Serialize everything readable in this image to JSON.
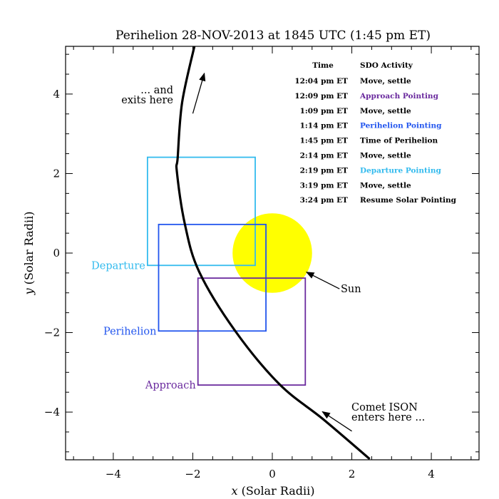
{
  "chart_data": {
    "type": "line",
    "title": "Perihelion 28-NOV-2013 at 1845 UTC (1:45 pm ET)",
    "xlabel_var": "x",
    "xlabel_rest": " (Solar Radii)",
    "ylabel_var": "y",
    "ylabel_rest": " (Solar Radii)",
    "xlim": [
      -5.2,
      5.2
    ],
    "ylim": [
      -5.2,
      5.2
    ],
    "xticks": [
      -4,
      -2,
      0,
      2,
      4
    ],
    "yticks": [
      -4,
      -2,
      0,
      2,
      4
    ],
    "xtick_labels": [
      "−4",
      "−2",
      "0",
      "2",
      "4"
    ],
    "ytick_labels": [
      "−4",
      "−2",
      "0",
      "2",
      "4"
    ],
    "minor_tick_step": 0.5,
    "grid": false,
    "comet_path": {
      "color": "#000000",
      "x": [
        2.45,
        1.28,
        0.18,
        -0.94,
        -1.84,
        -2.2,
        -2.4,
        -2.38,
        -2.27,
        -1.96
      ],
      "y": [
        -5.18,
        -4.18,
        -3.3,
        -1.95,
        -0.47,
        0.73,
        2.04,
        2.4,
        3.78,
        5.2
      ]
    },
    "sun": {
      "label": "Sun",
      "center": [
        0,
        0
      ],
      "radius": 1.0,
      "color": "#ffff00"
    },
    "pointing_boxes": [
      {
        "label": "Departure",
        "color": "#33bbee",
        "x": [
          -3.14,
          -0.43
        ],
        "y": [
          -0.31,
          2.41
        ]
      },
      {
        "label": "Perihelion",
        "color": "#2255ee",
        "x": [
          -2.86,
          -0.16
        ],
        "y": [
          -1.96,
          0.72
        ]
      },
      {
        "label": "Approach",
        "color": "#6a2a9e",
        "x": [
          -1.87,
          0.83
        ],
        "y": [
          -3.32,
          -0.63
        ]
      }
    ],
    "annotations": {
      "exits": [
        "... and",
        "exits here"
      ],
      "enters": [
        "Comet ISON",
        "enters here ..."
      ],
      "sun": "Sun"
    },
    "schedule": {
      "header_time": "Time",
      "header_activity": "SDO Activity",
      "rows": [
        {
          "time": "12:04 pm ET",
          "activity": "Move, settle",
          "color": "#000000"
        },
        {
          "time": "12:09 pm ET",
          "activity": "Approach Pointing",
          "color": "#6a2a9e"
        },
        {
          "time": "1:09 pm ET",
          "activity": "Move, settle",
          "color": "#000000"
        },
        {
          "time": "1:14 pm ET",
          "activity": "Perihelion Pointing",
          "color": "#2255ee"
        },
        {
          "time": "1:45 pm ET",
          "activity": "Time of Perihelion",
          "color": "#000000"
        },
        {
          "time": "2:14 pm ET",
          "activity": "Move, settle",
          "color": "#000000"
        },
        {
          "time": "2:19 pm ET",
          "activity": "Departure Pointing",
          "color": "#33bbee"
        },
        {
          "time": "3:19 pm ET",
          "activity": "Move, settle",
          "color": "#000000"
        },
        {
          "time": "3:24 pm ET",
          "activity": "Resume Solar Pointing",
          "color": "#000000"
        }
      ]
    }
  }
}
